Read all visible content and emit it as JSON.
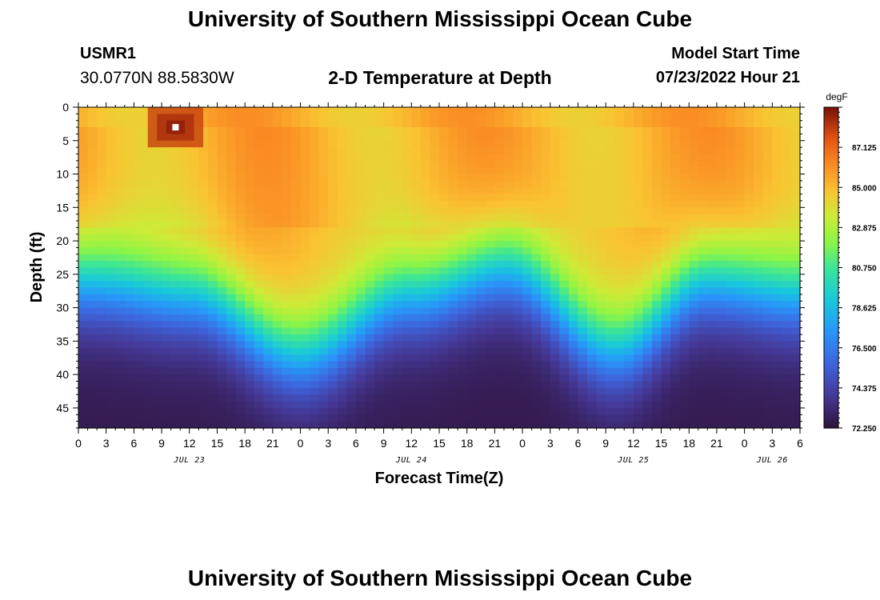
{
  "header": {
    "title": "University of Southern Mississippi Ocean Cube",
    "station_id": "USMR1",
    "station_coords": "30.0770N  88.5830W",
    "plot_title": "2-D Temperature at Depth",
    "model_label": "Model Start Time",
    "model_time": "07/23/2022 Hour 21"
  },
  "footer": {
    "title": "University of Southern Mississippi Ocean Cube"
  },
  "chart_data": {
    "type": "heatmap",
    "title": "2-D Temperature at Depth",
    "xlabel": "Forecast Time(Z)",
    "ylabel": "Depth (ft)",
    "x_tick_labels": [
      "0",
      "3",
      "6",
      "9",
      "12",
      "15",
      "18",
      "21",
      "0",
      "3",
      "6",
      "9",
      "12",
      "15",
      "18",
      "21",
      "0",
      "3",
      "6",
      "9",
      "12",
      "15",
      "18",
      "21",
      "0",
      "3",
      "6"
    ],
    "x_hours_range": [
      0,
      78
    ],
    "date_labels": [
      {
        "text": "JUL 23",
        "hour": 12
      },
      {
        "text": "JUL 24",
        "hour": 36
      },
      {
        "text": "JUL 25",
        "hour": 60
      },
      {
        "text": "JUL 26",
        "hour": 75
      }
    ],
    "y_ticks": [
      0,
      5,
      10,
      15,
      20,
      25,
      30,
      35,
      40,
      45
    ],
    "ylim": [
      0,
      48
    ],
    "colorbar": {
      "unit": "degF",
      "range": [
        72.25,
        89.25
      ],
      "tick_labels": [
        "87.125",
        "85.000",
        "82.875",
        "80.750",
        "78.625",
        "76.500",
        "74.375",
        "72.250"
      ]
    },
    "thermocline_depth_ft": {
      "hours": [
        0,
        12,
        24,
        36,
        46,
        58,
        68,
        78
      ],
      "values": [
        22,
        24,
        33,
        24,
        20,
        32,
        22,
        24
      ]
    },
    "surface_temp_degF": 85.3,
    "bottom_temp_degF": 72.6,
    "marker": {
      "hour": 10.5,
      "depth_ft": 3
    }
  }
}
